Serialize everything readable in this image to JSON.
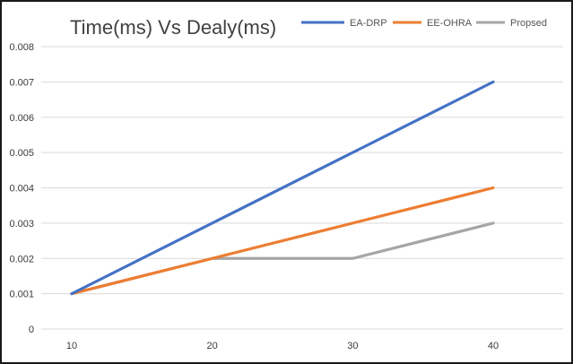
{
  "chart_data": {
    "type": "line",
    "title": "Time(ms) Vs Dealy(ms)",
    "xlabel": "",
    "ylabel": "",
    "x": [
      10,
      20,
      30,
      40
    ],
    "x_tick_labels": [
      "10",
      "20",
      "30",
      "40"
    ],
    "ylim": [
      0,
      0.008
    ],
    "y_tick_labels": [
      "0",
      "0.001",
      "0.002",
      "0.003",
      "0.004",
      "0.005",
      "0.006",
      "0.007",
      "0.008"
    ],
    "grid": "horizontal",
    "legend_position": "top-right",
    "series": [
      {
        "name": "EA-DRP",
        "color": "#4472C4",
        "values": [
          0.001,
          0.003,
          0.005,
          0.007
        ]
      },
      {
        "name": "EE-OHRA",
        "color": "#ED7D31",
        "values": [
          0.001,
          0.002,
          0.003,
          0.004
        ]
      },
      {
        "name": "Propsed",
        "color": "#A5A5A5",
        "values": [
          0.001,
          0.002,
          0.002,
          0.003
        ]
      }
    ]
  }
}
